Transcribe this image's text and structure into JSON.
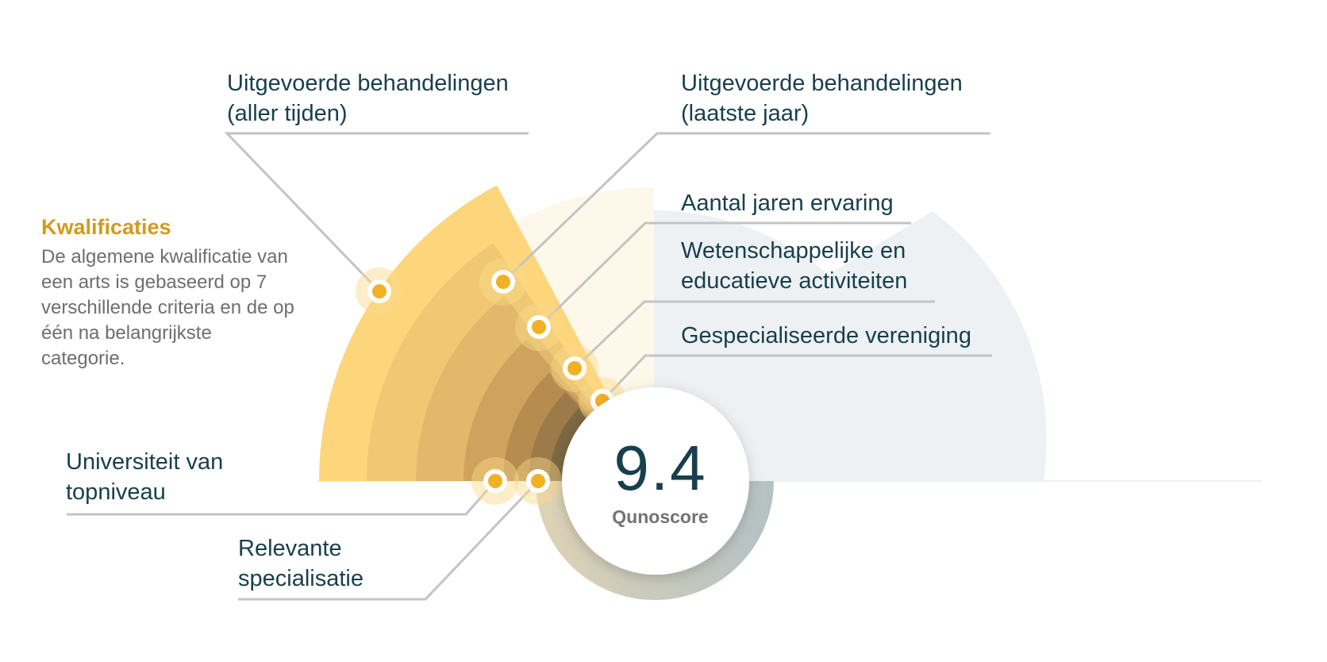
{
  "intro": {
    "title": "Kwalificaties",
    "text": "De algemene kwalificatie van een arts is gebaseerd op 7 verschillende criteria en de op één na belangrijkste categorie."
  },
  "score": {
    "value": "9.4",
    "label": "Qunoscore"
  },
  "criteria": [
    {
      "line1": "Uitgevoerde behandelingen",
      "line2": "(aller tijden)"
    },
    {
      "line1": "Uitgevoerde behandelingen",
      "line2": "(laatste jaar)"
    },
    {
      "line1": "Aantal jaren ervaring",
      "line2": ""
    },
    {
      "line1": "Wetenschappelijke en",
      "line2": "educatieve activiteiten"
    },
    {
      "line1": "Gespecialiseerde vereniging",
      "line2": ""
    },
    {
      "line1": "Universiteit van",
      "line2": "topniveau"
    },
    {
      "line1": "Relevante",
      "line2": "specialisatie"
    }
  ],
  "colors": {
    "text": "#173f4d",
    "accent": "#d39a1c",
    "dot": "#f2b124",
    "line": "#c4c4c4",
    "sector_light": "#fdd57a",
    "sector_dark": "#7d6843",
    "background_sector": "#eef1f4"
  }
}
